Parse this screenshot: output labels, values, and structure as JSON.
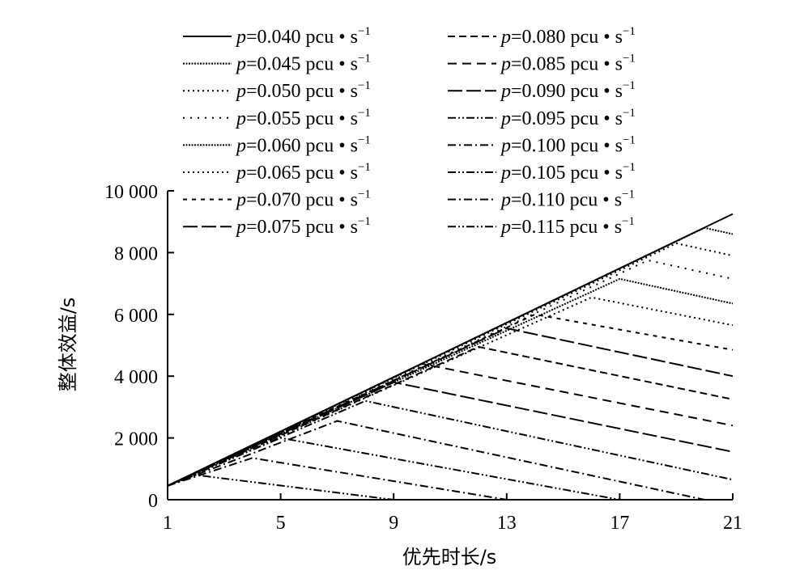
{
  "chart_data": {
    "type": "line",
    "title": "",
    "xlabel": "优先时长/s",
    "ylabel": "整体效益/s",
    "xlim": [
      1,
      21
    ],
    "ylim": [
      0,
      10000
    ],
    "xticks": [
      "1",
      "5",
      "9",
      "13",
      "17",
      "21"
    ],
    "yticks": [
      "0",
      "2 000",
      "4 000",
      "6 000",
      "8 000",
      "10 000"
    ],
    "grid": false,
    "legend_position": "top",
    "legend_columns": 2,
    "series": [
      {
        "name": "p=0.040 pcu • s⁻¹",
        "p": "0.040",
        "x": [
          1,
          21
        ],
        "y": [
          450,
          9250
        ],
        "style": "solid"
      },
      {
        "name": "p=0.045 pcu • s⁻¹",
        "p": "0.045",
        "x": [
          1,
          20,
          21
        ],
        "y": [
          450,
          8800,
          8600
        ],
        "style": "dense-dot"
      },
      {
        "name": "p=0.050 pcu • s⁻¹",
        "p": "0.050",
        "x": [
          1,
          19,
          21
        ],
        "y": [
          450,
          8300,
          7900
        ],
        "style": "dot"
      },
      {
        "name": "p=0.055 pcu • s⁻¹",
        "p": "0.055",
        "x": [
          1,
          18,
          21
        ],
        "y": [
          450,
          7750,
          7150
        ],
        "style": "sparse-dot"
      },
      {
        "name": "p=0.060 pcu • s⁻¹",
        "p": "0.060",
        "x": [
          1,
          17,
          21
        ],
        "y": [
          450,
          7150,
          6350
        ],
        "style": "dense-dot"
      },
      {
        "name": "p=0.065 pcu • s⁻¹",
        "p": "0.065",
        "x": [
          1,
          16,
          21
        ],
        "y": [
          450,
          6550,
          5650
        ],
        "style": "dot"
      },
      {
        "name": "p=0.070 pcu • s⁻¹",
        "p": "0.070",
        "x": [
          1,
          14,
          21
        ],
        "y": [
          450,
          6000,
          4850
        ],
        "style": "short-dash"
      },
      {
        "name": "p=0.075 pcu • s⁻¹",
        "p": "0.075",
        "x": [
          1,
          13,
          21
        ],
        "y": [
          450,
          5550,
          4000
        ],
        "style": "long-dash"
      },
      {
        "name": "p=0.080 pcu • s⁻¹",
        "p": "0.080",
        "x": [
          1,
          12,
          21
        ],
        "y": [
          450,
          4950,
          3250
        ],
        "style": "dash"
      },
      {
        "name": "p=0.085 pcu • s⁻¹",
        "p": "0.085",
        "x": [
          1,
          10,
          21
        ],
        "y": [
          450,
          4400,
          2400
        ],
        "style": "dash-wide"
      },
      {
        "name": "p=0.090 pcu • s⁻¹",
        "p": "0.090",
        "x": [
          1,
          9,
          21
        ],
        "y": [
          450,
          3800,
          1550
        ],
        "style": "long-dash"
      },
      {
        "name": "p=0.095 pcu • s⁻¹",
        "p": "0.095",
        "x": [
          1,
          8,
          21
        ],
        "y": [
          450,
          3200,
          650
        ],
        "style": "dash-dot-dot"
      },
      {
        "name": "p=0.100 pcu • s⁻¹",
        "p": "0.100",
        "x": [
          1,
          7,
          20
        ],
        "y": [
          450,
          2550,
          0
        ],
        "style": "dash-dot"
      },
      {
        "name": "p=0.105 pcu • s⁻¹",
        "p": "0.105",
        "x": [
          1,
          5,
          17
        ],
        "y": [
          450,
          2000,
          0
        ],
        "style": "dash-dot-dot"
      },
      {
        "name": "p=0.110 pcu • s⁻¹",
        "p": "0.110",
        "x": [
          1,
          4,
          13
        ],
        "y": [
          450,
          1350,
          0
        ],
        "style": "dash-dot"
      },
      {
        "name": "p=0.115 pcu • s⁻¹",
        "p": "0.115",
        "x": [
          1,
          2,
          9
        ],
        "y": [
          450,
          800,
          0
        ],
        "style": "dash-dot-dot"
      }
    ]
  },
  "legend": {
    "prefix": "p",
    "unit": "=VALUE pcu • s",
    "exponent": "−1"
  }
}
